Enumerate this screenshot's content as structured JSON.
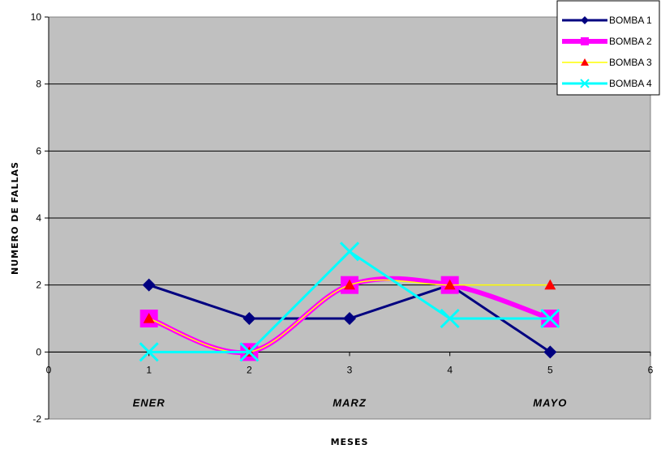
{
  "chart_data": {
    "type": "line",
    "title": "",
    "xlabel": "MESES",
    "ylabel": "NUMERO DE FALLAS",
    "xlim": [
      0,
      6
    ],
    "ylim": [
      -2,
      10
    ],
    "xticks": [
      "0",
      "1",
      "2",
      "3",
      "4",
      "5",
      "6"
    ],
    "yticks": [
      "-2",
      "0",
      "2",
      "4",
      "6",
      "8",
      "10"
    ],
    "month_labels": [
      {
        "x": 1,
        "label": "ENER"
      },
      {
        "x": 3,
        "label": "MARZ"
      },
      {
        "x": 5,
        "label": "MAYO"
      }
    ],
    "grid": true,
    "legend_position": "top-right",
    "plot_background": "#c0c0c0",
    "x": [
      1,
      2,
      3,
      4,
      5
    ],
    "series": [
      {
        "name": "BOMBA 1",
        "values": [
          2,
          1,
          1,
          2,
          0
        ],
        "color": "#000080",
        "marker": "diamond",
        "smooth": false
      },
      {
        "name": "BOMBA 2",
        "values": [
          1,
          0,
          2,
          2,
          1
        ],
        "color": "#ff00ff",
        "marker": "square",
        "smooth": true
      },
      {
        "name": "BOMBA 3",
        "values": [
          1,
          0,
          2,
          2,
          2
        ],
        "color": "#ffff00",
        "marker": "triangle",
        "marker_color": "#ff0000",
        "smooth": true
      },
      {
        "name": "BOMBA 4",
        "values": [
          0,
          0,
          3,
          1,
          1
        ],
        "color": "#00ffff",
        "marker": "x",
        "smooth": false
      }
    ]
  }
}
